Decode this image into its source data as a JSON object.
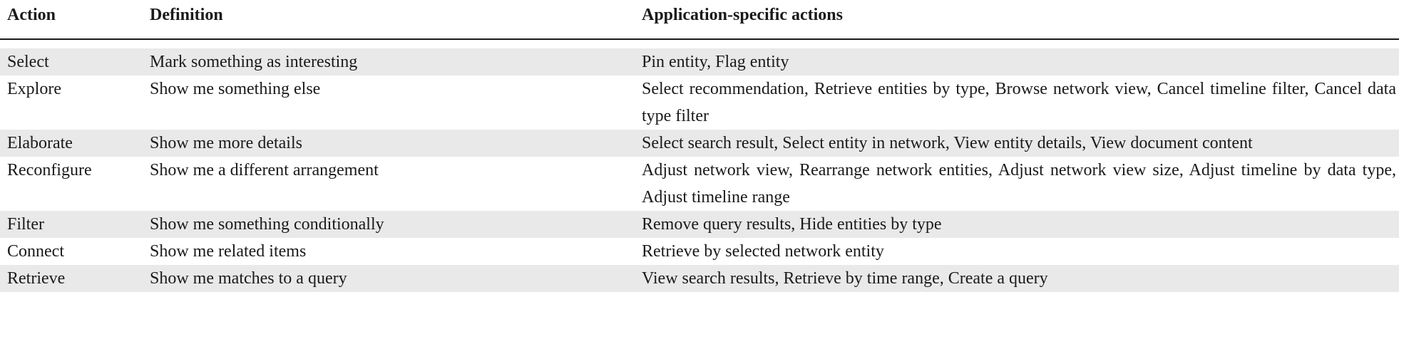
{
  "table": {
    "headers": [
      "Action",
      "Definition",
      "Application-specific actions"
    ],
    "rows": [
      {
        "action": "Select",
        "definition": "Mark something as interesting",
        "applications": "Pin entity, Flag entity"
      },
      {
        "action": "Explore",
        "definition": "Show me something else",
        "applications": "Select recommendation, Retrieve entities by type, Browse network view, Cancel timeline filter, Cancel data type filter"
      },
      {
        "action": "Elaborate",
        "definition": "Show me more details",
        "applications": "Select search result, Select entity in network, View entity details, View document content"
      },
      {
        "action": "Reconfigure",
        "definition": "Show me a different arrangement",
        "applications": "Adjust network view, Rearrange network entities, Adjust network view size, Adjust timeline by data type, Adjust timeline range"
      },
      {
        "action": "Filter",
        "definition": "Show me something conditionally",
        "applications": "Remove query results, Hide entities by type"
      },
      {
        "action": "Connect",
        "definition": "Show me related items",
        "applications": "Retrieve by selected network entity"
      },
      {
        "action": "Retrieve",
        "definition": "Show me matches to a query",
        "applications": "View search results, Retrieve by time range, Create a query"
      }
    ],
    "colors": {
      "stripe": "#e9e9e9",
      "rule": "#1a1a1a",
      "text": "#1a1a1a"
    }
  }
}
